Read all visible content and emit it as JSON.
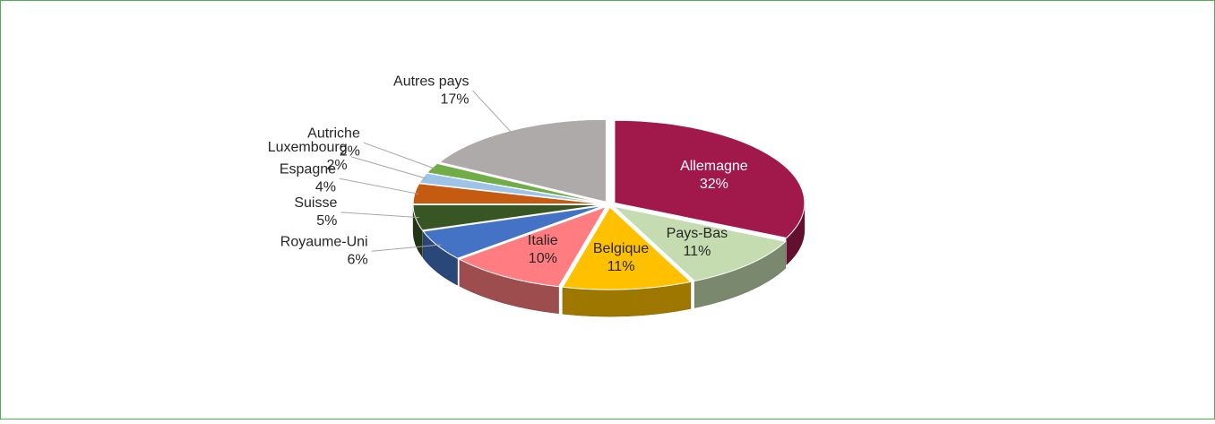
{
  "chart_data": {
    "type": "pie3d",
    "categories": [
      "Allemagne",
      "Pays-Bas",
      "Belgique",
      "Italie",
      "Royaume-Uni",
      "Suisse",
      "Espagne",
      "Luxembourg",
      "Autriche",
      "Autres pays"
    ],
    "values": [
      32,
      11,
      11,
      10,
      6,
      5,
      4,
      2,
      2,
      17
    ],
    "value_labels": [
      "32%",
      "11%",
      "11%",
      "10%",
      "6%",
      "5%",
      "4%",
      "2%",
      "2%",
      "17%"
    ],
    "colors": [
      "#a0194a",
      "#c4dcb0",
      "#ffc000",
      "#ff7c80",
      "#4472c4",
      "#375623",
      "#c55a11",
      "#9dc3e6",
      "#70ad47",
      "#aeaaaa"
    ]
  }
}
